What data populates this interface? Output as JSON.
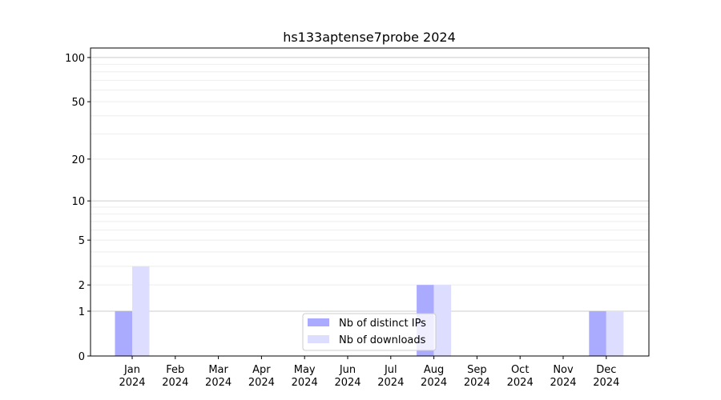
{
  "chart_data": {
    "type": "bar",
    "title": "hs133aptense7probe 2024",
    "xlabel": "",
    "ylabel": "",
    "yscale": "log(1+y)",
    "ylim": [
      0,
      116
    ],
    "yticks": [
      0,
      1,
      2,
      5,
      10,
      20,
      50,
      100
    ],
    "grid": true,
    "legend_position": "lower-center",
    "categories": [
      "Jan\n2024",
      "Feb\n2024",
      "Mar\n2024",
      "Apr\n2024",
      "May\n2024",
      "Jun\n2024",
      "Jul\n2024",
      "Aug\n2024",
      "Sep\n2024",
      "Oct\n2024",
      "Nov\n2024",
      "Dec\n2024"
    ],
    "series": [
      {
        "name": "Nb of distinct IPs",
        "color": "#aaaaff",
        "values": [
          1,
          0,
          0,
          0,
          0,
          0,
          0,
          2,
          0,
          0,
          0,
          1
        ]
      },
      {
        "name": "Nb of downloads",
        "color": "#ddddff",
        "values": [
          3,
          0,
          0,
          0,
          0,
          0,
          0,
          2,
          0,
          0,
          0,
          1
        ]
      }
    ]
  }
}
